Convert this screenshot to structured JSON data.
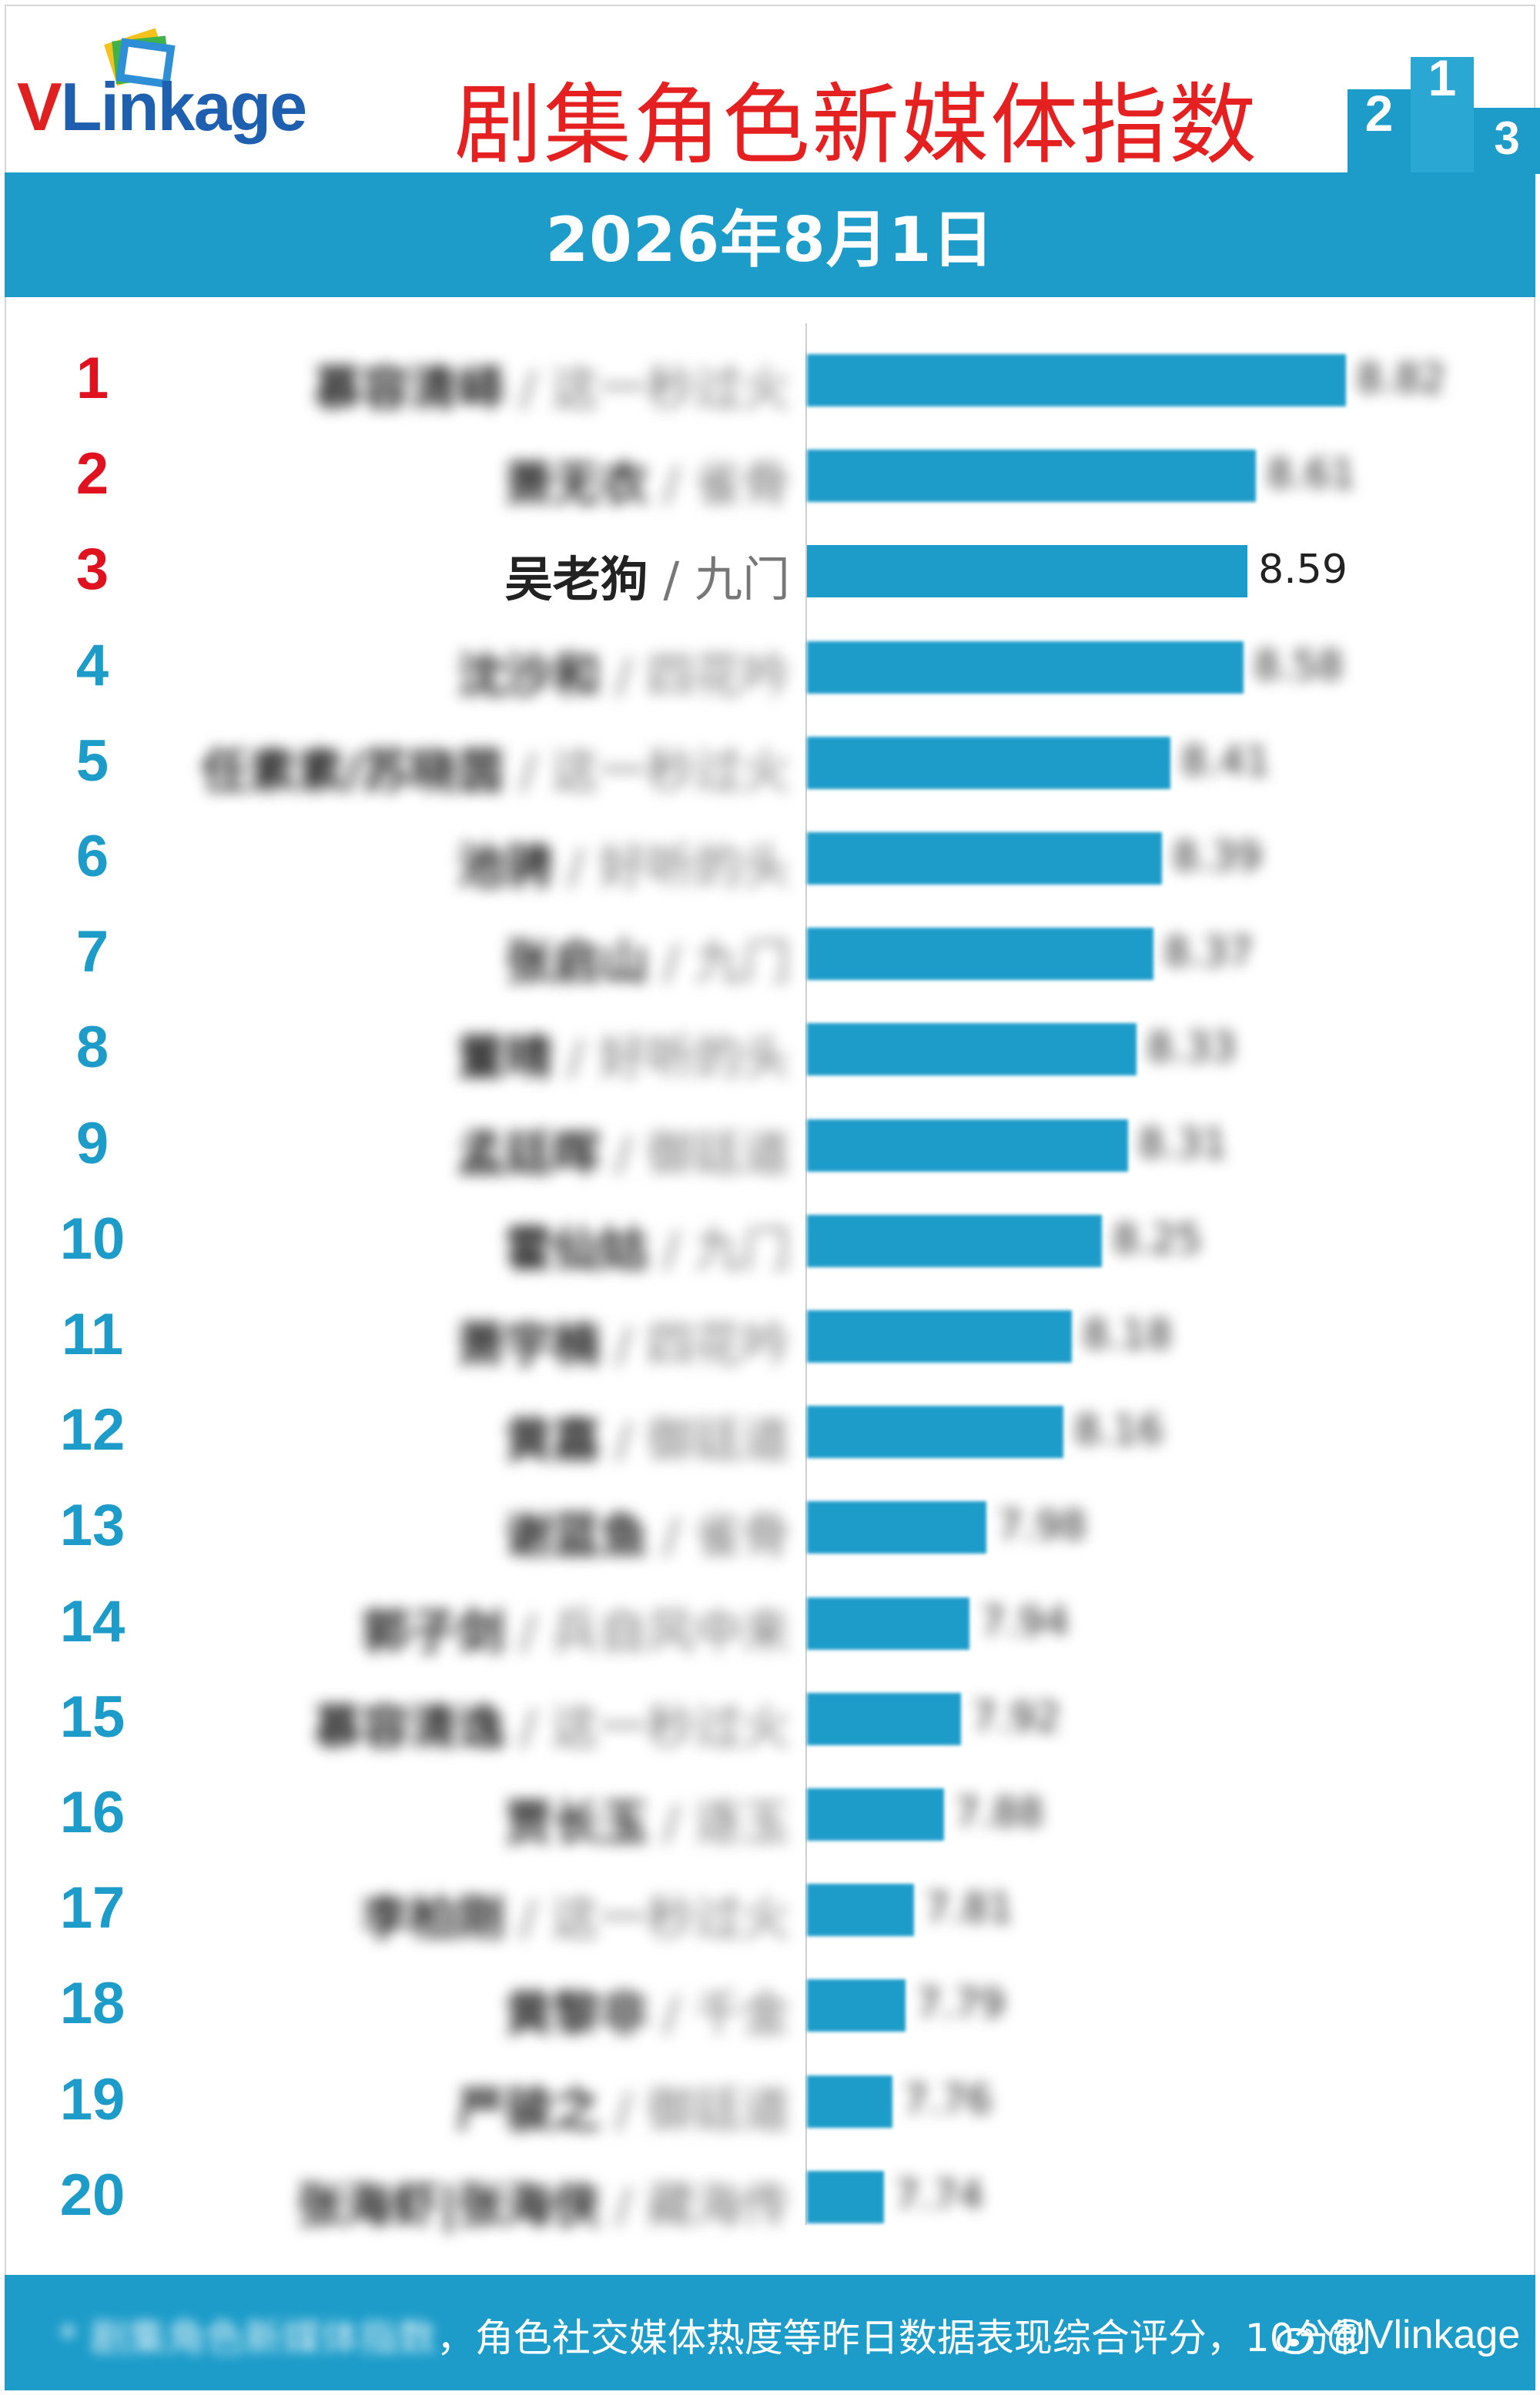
{
  "header": {
    "logo_v": "V",
    "logo_l": "L",
    "logo_rest": "inkage",
    "title": "剧集角色新媒体指数",
    "podium_numbers": [
      "2",
      "1",
      "3"
    ],
    "date": "2026年8月1日"
  },
  "colors": {
    "bar": "#1d9cc9",
    "rank_top3": "#e0121f",
    "rank_other": "#1d9cc9",
    "title_red": "#e52020"
  },
  "chart_data": {
    "type": "bar",
    "orientation": "horizontal",
    "categories": [
      "慕容清峄 / 这一秒过火",
      "萧无衣 / 雀骨",
      "吴老狗 / 九门",
      "沈沙和 / 四花吟",
      "任素素/苏晓茵 / 这一秒过火",
      "池骋 / 好听的头",
      "张启山 / 九门",
      "董晴 / 好听的头",
      "孟廷晖 / 御廷道",
      "霍仙姑 / 九门",
      "萧宇楠 / 四花吟",
      "黄嘉 / 御廷道",
      "谢蓝鱼 / 雀骨",
      "郭子剑 / 兵自风中来",
      "慕容清逸 / 这一秒过火",
      "贾长玉 / 逐玉",
      "李柏刚 / 这一秒过火",
      "黄黎非 / 千金",
      "严骏之 / 御廷道",
      "张海虾|张海侠 / 藏海传"
    ],
    "values": [
      8.82,
      8.61,
      8.59,
      8.58,
      8.41,
      8.39,
      8.37,
      8.33,
      8.31,
      8.25,
      8.18,
      8.16,
      7.98,
      7.94,
      7.92,
      7.88,
      7.81,
      7.79,
      7.76,
      7.74
    ],
    "ranks": [
      "1",
      "2",
      "3",
      "4",
      "5",
      "6",
      "7",
      "8",
      "9",
      "10",
      "11",
      "12",
      "13",
      "14",
      "15",
      "16",
      "17",
      "18",
      "19",
      "20"
    ],
    "value_labels": [
      "8.82",
      "8.61",
      "8.59",
      "8.58",
      "8.41",
      "8.39",
      "8.37",
      "8.33",
      "8.31",
      "8.25",
      "8.18",
      "8.16",
      "7.98",
      "7.94",
      "7.92",
      "7.88",
      "7.81",
      "7.79",
      "7.76",
      "7.74"
    ],
    "highlighted_index": 2,
    "xlim": [
      7.6,
      8.82
    ],
    "grid": false,
    "legend": "none"
  },
  "footer": {
    "note_prefix": "* 剧集角色新媒体指数",
    "note_main": "，角色社交媒体热度等昨日数据表现综合评分，10分制",
    "watermark": "@Vlinkage"
  }
}
